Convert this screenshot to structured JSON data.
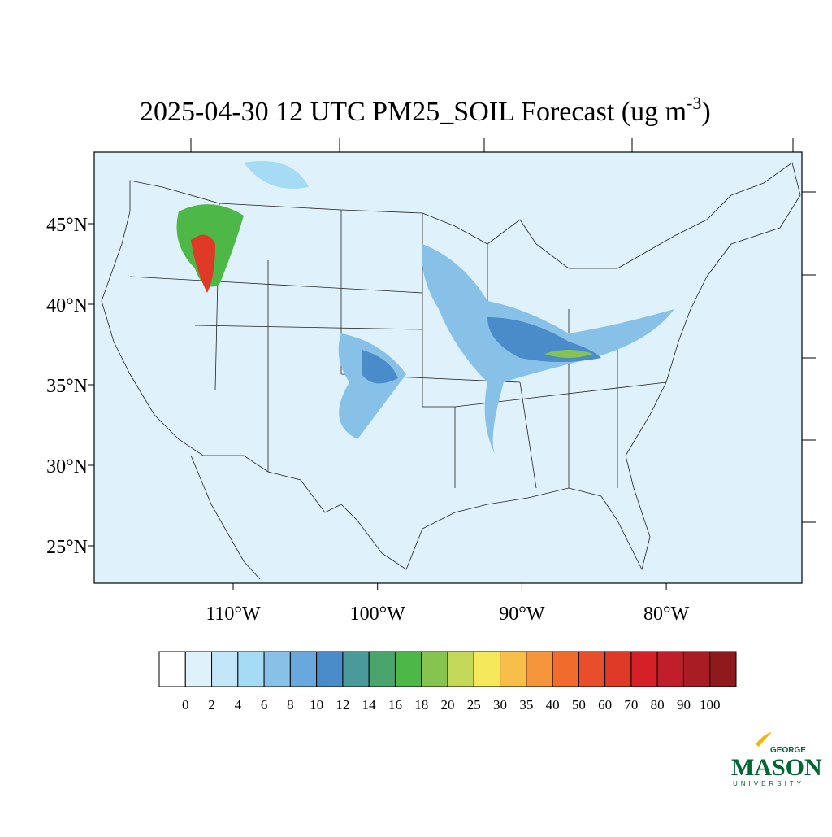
{
  "title": {
    "text": "2025-04-30 12 UTC PM25_SOIL Forecast (ug m",
    "superscript": "-3",
    "end": ")"
  },
  "lat_labels": [
    "45°N",
    "40°N",
    "35°N",
    "30°N",
    "25°N"
  ],
  "lon_labels": [
    "110°W",
    "100°W",
    "90°W",
    "80°W"
  ],
  "colorbar": {
    "colors": [
      "#ffffff",
      "#dff1fb",
      "#c3e6f8",
      "#a6dbf6",
      "#87c1e8",
      "#69a8dc",
      "#4a8bc9",
      "#4a9a9a",
      "#4aa56d",
      "#4db848",
      "#86c44f",
      "#c4d85a",
      "#f5e85a",
      "#f7be4a",
      "#f5963d",
      "#f16b2d",
      "#e84e2c",
      "#df3a27",
      "#d52028",
      "#bf1e2a",
      "#a91c24",
      "#8e1a1e"
    ],
    "labels": [
      0,
      2,
      4,
      6,
      8,
      10,
      12,
      14,
      16,
      18,
      20,
      25,
      30,
      35,
      40,
      50,
      60,
      70,
      80,
      90,
      100
    ]
  },
  "logo": {
    "top": "GEORGE",
    "main": "MASON",
    "bottom": "UNIVERSITY"
  }
}
